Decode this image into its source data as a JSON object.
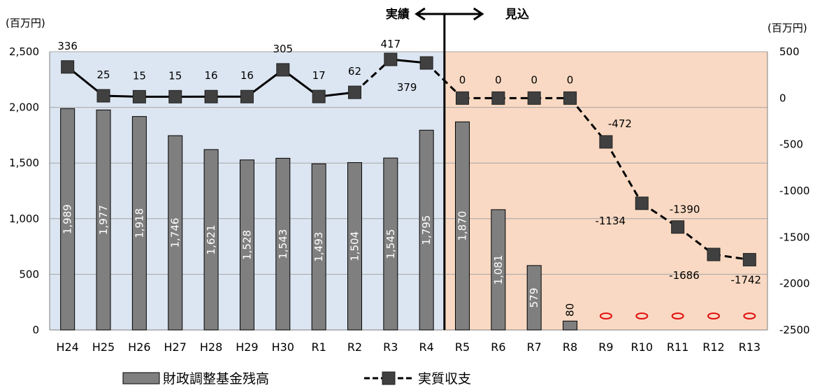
{
  "chart_data": {
    "type": "bar",
    "categories": [
      "H24",
      "H25",
      "H26",
      "H27",
      "H28",
      "H29",
      "H30",
      "R1",
      "R2",
      "R3",
      "R4",
      "R5",
      "R6",
      "R7",
      "R8",
      "R9",
      "R10",
      "R11",
      "R12",
      "R13"
    ],
    "series": [
      {
        "name": "財政調整基金残高",
        "type": "bar",
        "axis": "left",
        "color": "#7f7f7f",
        "values": [
          1989,
          1977,
          1918,
          1746,
          1621,
          1528,
          1543,
          1493,
          1504,
          1545,
          1795,
          1870,
          1081,
          579,
          80,
          null,
          null,
          null,
          null,
          null
        ]
      },
      {
        "name": "実質収支",
        "type": "line",
        "axis": "right",
        "color": "#404040",
        "values": [
          336,
          25,
          15,
          15,
          16,
          16,
          305,
          17,
          62,
          417,
          379,
          0,
          0,
          0,
          0,
          -472,
          -1134,
          -1390,
          -1686,
          -1742
        ],
        "labels": [
          "336",
          "25",
          "15",
          "15",
          "16",
          "16",
          "305",
          "17",
          "62",
          "417",
          "379",
          "0",
          "0",
          "0",
          "0",
          "-472",
          "-1134",
          "-1390",
          "-1686",
          "-1742"
        ]
      }
    ],
    "zero_markers": [
      "R9",
      "R10",
      "R11",
      "R12",
      "R13"
    ],
    "left_axis": {
      "unit": "(百万円)",
      "ylim": [
        0,
        2500
      ],
      "ticks": [
        0,
        500,
        1000,
        1500,
        2000,
        2500
      ],
      "tick_labels": [
        "0",
        "500",
        "1,000",
        "1,500",
        "2,000",
        "2,500"
      ]
    },
    "right_axis": {
      "unit": "(百万円)",
      "ylim": [
        -2500,
        500
      ],
      "ticks": [
        -2500,
        -2000,
        -1500,
        -1000,
        -500,
        0,
        500
      ],
      "tick_labels": [
        "-2500",
        "-2000",
        "-1500",
        "-1000",
        "-500",
        "0",
        "500"
      ]
    },
    "bar_labels": [
      "1,989",
      "1,977",
      "1,918",
      "1,746",
      "1,621",
      "1,528",
      "1,543",
      "1,493",
      "1,504",
      "1,545",
      "1,795",
      "1,870",
      "1,081",
      "579",
      "80"
    ],
    "divider": {
      "left_label": "実績",
      "right_label": "見込",
      "between": [
        "R4",
        "R5"
      ]
    },
    "region_colors": {
      "actual": "#dce6f2",
      "forecast": "#f9d9c3"
    },
    "grid": true,
    "legend": {
      "position": "bottom"
    }
  }
}
